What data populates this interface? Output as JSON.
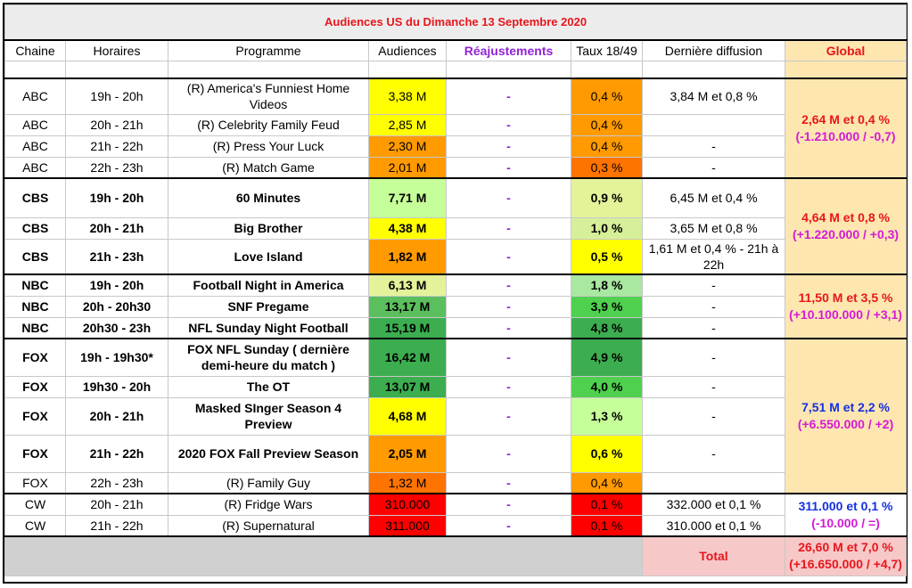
{
  "title": "Audiences US du Dimanche 13 Septembre 2020",
  "headers": {
    "chaine": "Chaine",
    "horaires": "Horaires",
    "programme": "Programme",
    "audiences": "Audiences",
    "reajustements": "Réajustements",
    "taux": "Taux 18/49",
    "derniere": "Dernière diffusion",
    "global": "Global"
  },
  "rows": [
    {
      "chaine": "ABC",
      "horaires": "19h - 20h",
      "programme": "(R) America's Funniest Home Videos",
      "audiences": "3,38 M",
      "reaj": "-",
      "taux": "0,4 %",
      "derniere": "3,84 M et 0,8 %"
    },
    {
      "chaine": "ABC",
      "horaires": "20h - 21h",
      "programme": "(R) Celebrity Family Feud",
      "audiences": "2,85 M",
      "reaj": "-",
      "taux": "0,4 %",
      "derniere": ""
    },
    {
      "chaine": "ABC",
      "horaires": "21h - 22h",
      "programme": "(R) Press Your Luck",
      "audiences": "2,30 M",
      "reaj": "-",
      "taux": "0,4 %",
      "derniere": "-"
    },
    {
      "chaine": "ABC",
      "horaires": "22h - 23h",
      "programme": "(R) Match Game",
      "audiences": "2,01 M",
      "reaj": "-",
      "taux": "0,3 %",
      "derniere": "-"
    },
    {
      "chaine": "CBS",
      "horaires": "19h - 20h",
      "programme": "60 Minutes",
      "audiences": "7,71 M",
      "reaj": "-",
      "taux": "0,9 %",
      "derniere": "6,45 M et 0,4 %"
    },
    {
      "chaine": "CBS",
      "horaires": "20h - 21h",
      "programme": "Big Brother",
      "audiences": "4,38 M",
      "reaj": "-",
      "taux": "1,0 %",
      "derniere": "3,65 M et 0,8 %"
    },
    {
      "chaine": "CBS",
      "horaires": "21h - 23h",
      "programme": "Love Island",
      "audiences": "1,82 M",
      "reaj": "-",
      "taux": "0,5 %",
      "derniere": "1,61 M et 0,4 % - 21h à 22h"
    },
    {
      "chaine": "NBC",
      "horaires": "19h - 20h",
      "programme": "Football Night in America",
      "audiences": "6,13 M",
      "reaj": "-",
      "taux": "1,8 %",
      "derniere": "-"
    },
    {
      "chaine": "NBC",
      "horaires": "20h - 20h30",
      "programme": "SNF Pregame",
      "audiences": "13,17 M",
      "reaj": "-",
      "taux": "3,9 %",
      "derniere": "-"
    },
    {
      "chaine": "NBC",
      "horaires": "20h30 - 23h",
      "programme": "NFL Sunday Night Football",
      "audiences": "15,19 M",
      "reaj": "-",
      "taux": "4,8 %",
      "derniere": "-"
    },
    {
      "chaine": "FOX",
      "horaires": "19h - 19h30*",
      "programme": "FOX NFL Sunday ( dernière demi-heure du match )",
      "audiences": "16,42 M",
      "reaj": "-",
      "taux": "4,9 %",
      "derniere": "-"
    },
    {
      "chaine": "FOX",
      "horaires": "19h30 - 20h",
      "programme": "The OT",
      "audiences": "13,07 M",
      "reaj": "-",
      "taux": "4,0 %",
      "derniere": "-"
    },
    {
      "chaine": "FOX",
      "horaires": "20h - 21h",
      "programme": "Masked SInger Season 4 Preview",
      "audiences": "4,68 M",
      "reaj": "-",
      "taux": "1,3 %",
      "derniere": "-"
    },
    {
      "chaine": "FOX",
      "horaires": "21h - 22h",
      "programme": "2020 FOX Fall Preview Season",
      "audiences": "2,05 M",
      "reaj": "-",
      "taux": "0,6 %",
      "derniere": "-"
    },
    {
      "chaine": "FOX",
      "horaires": "22h - 23h",
      "programme": "(R) Family Guy",
      "audiences": "1,32 M",
      "reaj": "-",
      "taux": "0,4 %",
      "derniere": ""
    },
    {
      "chaine": "CW",
      "horaires": "20h - 21h",
      "programme": "(R) Fridge Wars",
      "audiences": "310.000",
      "reaj": "-",
      "taux": "0,1 %",
      "derniere": "332.000 et 0,1 %"
    },
    {
      "chaine": "CW",
      "horaires": "21h - 22h",
      "programme": "(R) Supernatural",
      "audiences": "311.000",
      "reaj": "-",
      "taux": "0,1 %",
      "derniere": "310.000 et 0,1 %"
    }
  ],
  "globals": {
    "abc": {
      "line1": "2,64 M et 0,4 %",
      "line2": "(-1.210.000 / -0,7)"
    },
    "cbs": {
      "line1": "4,64 M et 0,8 %",
      "line2": "(+1.220.000 / +0,3)"
    },
    "nbc": {
      "line1": "11,50 M et 3,5 %",
      "line2": "(+10.100.000 / +3,1)"
    },
    "fox": {
      "line1": "7,51 M et 2,2 %",
      "line2": "(+6.550.000 / +2)"
    },
    "cw": {
      "line1": "311.000 et 0,1 %",
      "line2": "(-10.000 / =)"
    }
  },
  "total": {
    "label": "Total",
    "line1": "26,60 M et 7,0 %",
    "line2": "(+16.650.000 / +4,7)"
  },
  "colors": {
    "title_red": "#e8161c",
    "purple": "#9123d6",
    "global_bg": "#fde6b0",
    "total_bg": "#f6c8c8"
  }
}
